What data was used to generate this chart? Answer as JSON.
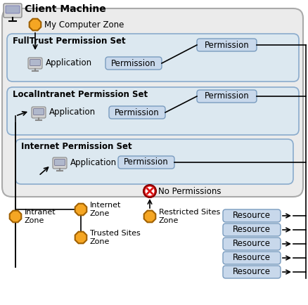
{
  "title": "Client Machine",
  "bg_outer": "#e8e8e8",
  "bg_fulltrust": "#dce8f0",
  "bg_localintranet": "#dce8f0",
  "bg_internet": "#dce8f0",
  "permission_box_color": "#c8d8eb",
  "resource_box_color": "#c8d8eb",
  "text_color": "#000000",
  "arrow_color": "#000000",
  "zone_circle_color": "#f5a623",
  "zone_circle_edge": "#b07000",
  "fulltrust_label": "FullTrust Permission Set",
  "localintranet_label": "LocalIntranet Permission Set",
  "internet_label": "Internet Permission Set",
  "my_computer_label": "My Computer Zone",
  "application_label": "Application",
  "permission_label": "Permission",
  "resource_label": "Resource",
  "no_permissions_label": "No Permissions",
  "intranet_zone_label": "Intranet\nZone",
  "internet_zone_label": "Internet\nZone",
  "restricted_zone_label": "Restricted Sites\nZone",
  "trusted_zone_label": "Trusted Sites\nZone",
  "figw": 4.39,
  "figh": 4.34,
  "dpi": 100
}
